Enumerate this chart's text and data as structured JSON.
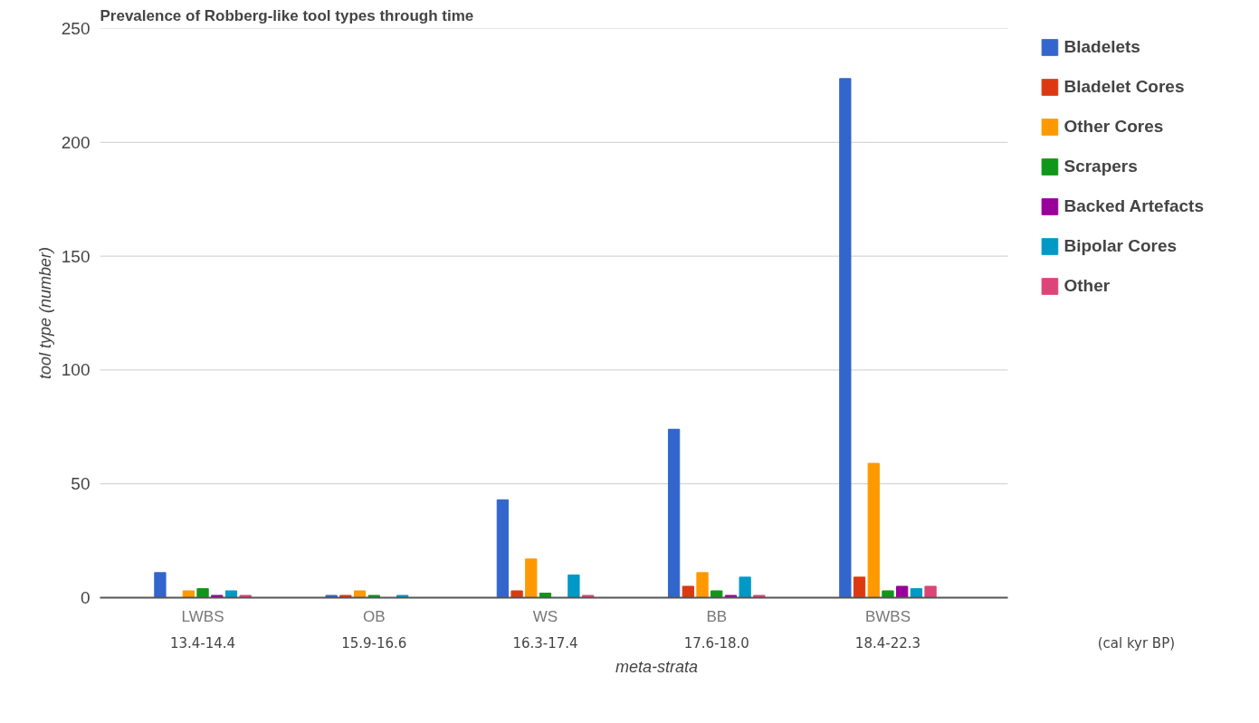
{
  "chart_data": {
    "type": "bar",
    "title": "Prevalence of Robberg-like tool types through time",
    "xlabel": "meta-strata",
    "ylabel": "tool type (number)",
    "categories": [
      "LWBS\n13.4-14.4",
      "OB\n15.9-16.6",
      "WS\n16.3-17.4",
      "BB\n17.6-18.0",
      "BWBS\n18.4-22.3"
    ],
    "series": [
      {
        "name": "Bladelets",
        "color": "#3366cc",
        "values": [
          11,
          1,
          43,
          74,
          228
        ]
      },
      {
        "name": "Bladelet Cores",
        "color": "#dc3912",
        "values": [
          0,
          1,
          3,
          5,
          9
        ]
      },
      {
        "name": "Other Cores",
        "color": "#ff9900",
        "values": [
          3,
          3,
          17,
          11,
          59
        ]
      },
      {
        "name": "Scrapers",
        "color": "#109618",
        "values": [
          4,
          1,
          2,
          3,
          3
        ]
      },
      {
        "name": "Backed Artefacts",
        "color": "#990099",
        "values": [
          1,
          0,
          0,
          1,
          5
        ]
      },
      {
        "name": "Bipolar Cores",
        "color": "#0099c6",
        "values": [
          3,
          1,
          10,
          9,
          4
        ]
      },
      {
        "name": "Other",
        "color": "#dd4477",
        "values": [
          1,
          0,
          1,
          1,
          5
        ]
      }
    ],
    "annotations": [
      "(cal kyr BP)"
    ],
    "ylim": [
      0,
      250
    ],
    "yticks": [
      0,
      50,
      100,
      150,
      200,
      250
    ],
    "grid": "y",
    "legend": "right"
  }
}
